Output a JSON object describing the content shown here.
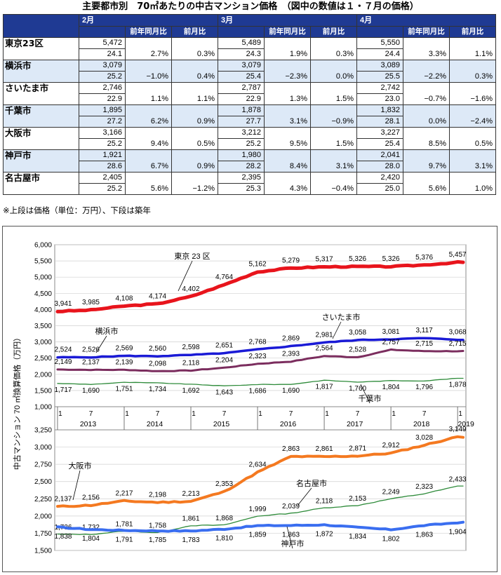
{
  "title": "主要都市別　70㎡あたりの中古マンション価格　（図中の数値は１・７月の価格）",
  "table": {
    "months": [
      "2月",
      "3月",
      "4月"
    ],
    "subheaders": [
      "前年同月比",
      "前月比"
    ],
    "rows": [
      {
        "city": "東京23区",
        "m": [
          {
            "price": "5,472",
            "age": "24.1",
            "yoy": "2.7%",
            "mom": "0.3%"
          },
          {
            "price": "5,489",
            "age": "24.3",
            "yoy": "1.9%",
            "mom": "0.3%"
          },
          {
            "price": "5,550",
            "age": "24.4",
            "yoy": "3.3%",
            "mom": "1.1%"
          }
        ]
      },
      {
        "city": "横浜市",
        "m": [
          {
            "price": "3,079",
            "age": "25.2",
            "yoy": "−1.0%",
            "mom": "0.4%"
          },
          {
            "price": "3,079",
            "age": "25.4",
            "yoy": "−2.3%",
            "mom": "0.0%"
          },
          {
            "price": "3,089",
            "age": "25.5",
            "yoy": "−2.2%",
            "mom": "0.3%"
          }
        ]
      },
      {
        "city": "さいたま市",
        "m": [
          {
            "price": "2,746",
            "age": "22.9",
            "yoy": "1.1%",
            "mom": "1.1%"
          },
          {
            "price": "2,787",
            "age": "22.9",
            "yoy": "1.3%",
            "mom": "1.5%"
          },
          {
            "price": "2,742",
            "age": "23.0",
            "yoy": "−0.7%",
            "mom": "−1.6%"
          }
        ]
      },
      {
        "city": "千葉市",
        "m": [
          {
            "price": "1,895",
            "age": "27.2",
            "yoy": "6.2%",
            "mom": "0.9%"
          },
          {
            "price": "1,878",
            "age": "27.7",
            "yoy": "3.1%",
            "mom": "−0.9%"
          },
          {
            "price": "1,832",
            "age": "28.1",
            "yoy": "0.0%",
            "mom": "−2.4%"
          }
        ]
      },
      {
        "city": "大阪市",
        "m": [
          {
            "price": "3,166",
            "age": "25.2",
            "yoy": "9.4%",
            "mom": "0.5%"
          },
          {
            "price": "3,212",
            "age": "25.2",
            "yoy": "9.5%",
            "mom": "1.5%"
          },
          {
            "price": "3,227",
            "age": "25.4",
            "yoy": "8.5%",
            "mom": "0.5%"
          }
        ]
      },
      {
        "city": "神戸市",
        "m": [
          {
            "price": "1,921",
            "age": "28.6",
            "yoy": "6.7%",
            "mom": "0.9%"
          },
          {
            "price": "1,980",
            "age": "28.2",
            "yoy": "8.4%",
            "mom": "3.1%"
          },
          {
            "price": "2,041",
            "age": "28.0",
            "yoy": "9.7%",
            "mom": "3.1%"
          }
        ]
      },
      {
        "city": "名古屋市",
        "m": [
          {
            "price": "2,405",
            "age": "25.2",
            "yoy": "5.6%",
            "mom": "−1.2%"
          },
          {
            "price": "2,395",
            "age": "25.3",
            "yoy": "4.3%",
            "mom": "−0.4%"
          },
          {
            "price": "2,420",
            "age": "25.0",
            "yoy": "5.6%",
            "mom": "1.0%"
          }
        ]
      }
    ]
  },
  "note": "※上段は価格（単位：万円）、下段は築年",
  "chart_data": [
    {
      "type": "line",
      "ylabel": "中古マンション 70 ㎡換算価格（万円）",
      "ylim": [
        1000,
        6000
      ],
      "yticks": [
        "6,000",
        "5,500",
        "5,000",
        "4,500",
        "4,000",
        "3,500",
        "3,000",
        "2,500",
        "2,000",
        "1,500",
        "1,000"
      ],
      "x_month_ticks": [
        "1",
        "7",
        "1",
        "7",
        "1",
        "7",
        "1",
        "7",
        "1",
        "7",
        "1",
        "7",
        "1"
      ],
      "x_year_labels": [
        "2013",
        "2014",
        "2015",
        "2016",
        "2017",
        "2018",
        "2019"
      ],
      "grid": true,
      "series": [
        {
          "name": "東京 23 区",
          "color": "#e8141c",
          "label_values": [
            3941,
            3985,
            4108,
            4174,
            4402,
            4764,
            5162,
            5279,
            5317,
            5326,
            5326,
            5376,
            5457
          ],
          "label_strings": [
            "3,941",
            "3,985",
            "4,108",
            "4,174",
            "4,402",
            "4,764",
            "5,162",
            "5,279",
            "5,317",
            "5,326",
            "5,326",
            "5,376",
            "5,457"
          ]
        },
        {
          "name": "横浜市",
          "color": "#1a1ad6",
          "label_values": [
            2524,
            2526,
            2569,
            2560,
            2598,
            2651,
            2768,
            2869,
            2981,
            3058,
            3081,
            3117,
            3068
          ],
          "label_strings": [
            "2,524",
            "2,526",
            "2,569",
            "2,560",
            "2,598",
            "2,651",
            "2,768",
            "2,869",
            "2,981",
            "3,058",
            "3,081",
            "3,117",
            "3,068"
          ]
        },
        {
          "name": "さいたま市",
          "color": "#7b2d5e",
          "label_values": [
            2149,
            2137,
            2139,
            2098,
            2118,
            2204,
            2323,
            2393,
            2564,
            2528,
            2757,
            2715,
            2715
          ],
          "label_strings": [
            "2,149",
            "2,137",
            "2,139",
            "2,098",
            "2,118",
            "2,204",
            "2,323",
            "2,393",
            "2,564",
            "2,528",
            "2,757",
            "2,715",
            "2,715"
          ]
        },
        {
          "name": "千葉市",
          "color": "#2e8b3a",
          "label_values": [
            1717,
            1690,
            1751,
            1734,
            1692,
            1643,
            1686,
            1690,
            1817,
            1760,
            1804,
            1796,
            1878
          ],
          "label_strings": [
            "1,717",
            "1,690",
            "1,751",
            "1,734",
            "1,692",
            "1,643",
            "1,686",
            "1,690",
            "1,817",
            "1,760",
            "1,804",
            "1,796",
            "1,878"
          ]
        }
      ]
    },
    {
      "type": "line",
      "ylim": [
        1500,
        3250
      ],
      "yticks": [
        "3,250",
        "3,000",
        "2,750",
        "2,500",
        "2,250",
        "2,000",
        "1,750",
        "1,500"
      ],
      "grid": true,
      "series": [
        {
          "name": "大阪市",
          "color": "#f47920",
          "label_values": [
            2137,
            2156,
            2217,
            2198,
            2213,
            2353,
            2634,
            2863,
            2861,
            2871,
            2912,
            3028,
            3149
          ],
          "label_strings": [
            "2,137",
            "2,156",
            "2,217",
            "2,198",
            "2,213",
            "2,353",
            "2,634",
            "2,863",
            "2,861",
            "2,871",
            "2,912",
            "3,028",
            "3,149"
          ]
        },
        {
          "name": "名古屋市",
          "color": "#2e8b3a",
          "label_values": [
            1736,
            1732,
            1781,
            1758,
            1861,
            1868,
            1999,
            2039,
            2118,
            2153,
            2249,
            2323,
            2433
          ],
          "label_strings": [
            "1,736",
            "1,732",
            "1,781",
            "1,758",
            "1,861",
            "1,868",
            "1,999",
            "2,039",
            "2,118",
            "2,153",
            "2,249",
            "2,323",
            "2,433"
          ]
        },
        {
          "name": "神戸市",
          "color": "#3a6ef0",
          "label_values": [
            1838,
            1804,
            1791,
            1785,
            1783,
            1810,
            1859,
            1863,
            1872,
            1834,
            1802,
            1863,
            1904
          ],
          "label_strings": [
            "1,838",
            "1,804",
            "1,791",
            "1,785",
            "1,783",
            "1,810",
            "1,859",
            "1,863",
            "1,872",
            "1,834",
            "1,802",
            "1,863",
            "1,904"
          ]
        }
      ]
    }
  ]
}
